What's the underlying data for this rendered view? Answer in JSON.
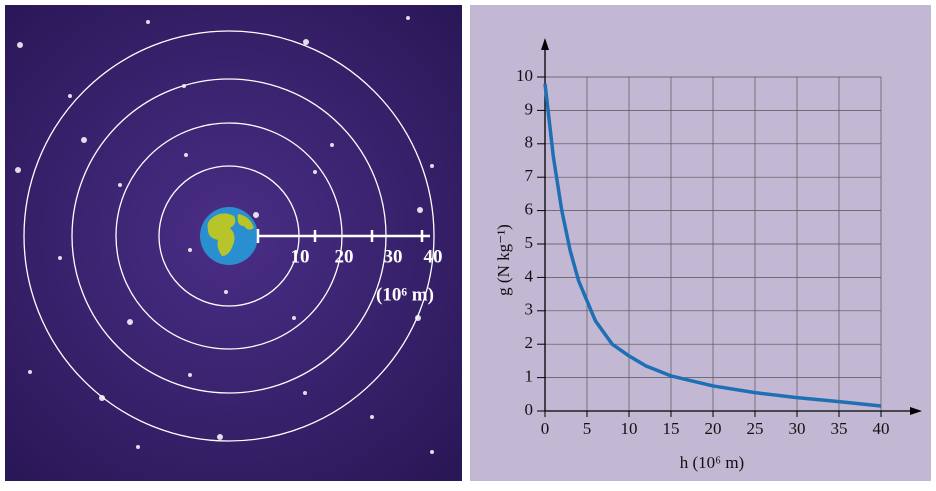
{
  "chart_data": {
    "type": "line",
    "x": [
      0,
      1,
      2,
      3,
      4,
      5,
      6,
      8,
      10,
      12,
      15,
      20,
      25,
      30,
      35,
      40
    ],
    "values": [
      9.8,
      7.6,
      6.0,
      4.8,
      3.9,
      3.3,
      2.7,
      2.0,
      1.65,
      1.35,
      1.05,
      0.75,
      0.55,
      0.4,
      0.28,
      0.15
    ],
    "color": "#1f6fb4",
    "x_label": "h (10⁶ m)",
    "y_label": "g (N kg⁻¹)",
    "xlim": [
      0,
      40
    ],
    "xticks": [
      0,
      5,
      10,
      15,
      20,
      25,
      30,
      35,
      40
    ],
    "ylim": [
      0,
      10
    ],
    "yticks": [
      0,
      1,
      2,
      3,
      4,
      5,
      6,
      7,
      8,
      9,
      10
    ],
    "grid": true
  },
  "illustration": {
    "scale_labels": [
      10,
      20,
      30,
      40
    ],
    "unit": "(10⁶ m)"
  }
}
